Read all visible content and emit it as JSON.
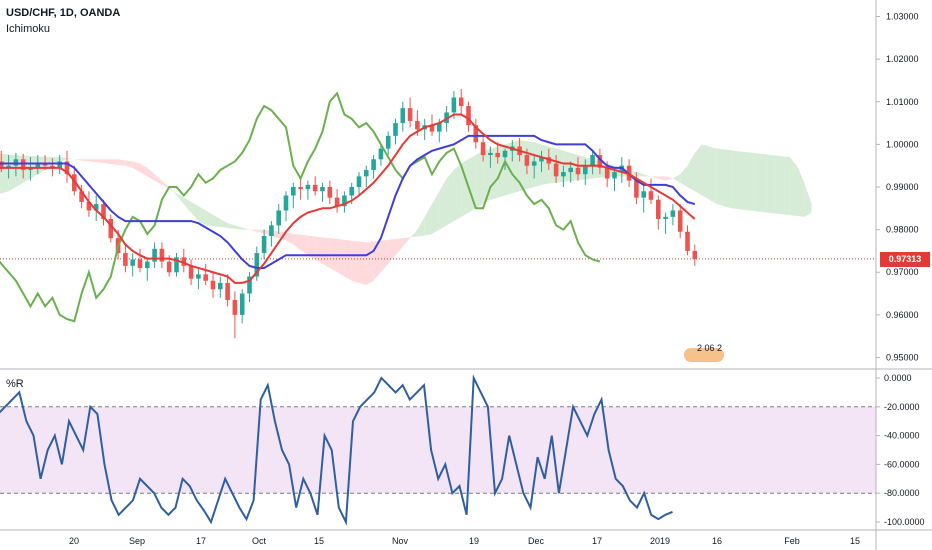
{
  "header": {
    "symbol": "USD/CHF, 1D, OANDA",
    "indicator": "Ichimoku",
    "oscillator": "%R",
    "badge_text": "2 06 2"
  },
  "colors": {
    "bull": "#26a69a",
    "bear": "#ef5350",
    "tenkan": "#e53935",
    "kijun": "#3f3fd8",
    "chikou": "#6ab04c",
    "cloud_bull": "#c8e6c9",
    "cloud_bear": "#ffcdd2",
    "williams_line": "#2f5fa0",
    "williams_band": "#f3e5f5",
    "last_price_tag": "#e53935"
  },
  "chart_data": [
    {
      "type": "candlestick",
      "title": "USD/CHF, 1D, OANDA",
      "indicator": "Ichimoku",
      "ylim": [
        0.948,
        1.032
      ],
      "y_ticks": [
        "1.03000",
        "1.02000",
        "1.01000",
        "1.00000",
        "0.99000",
        "0.98000",
        "0.97000",
        "0.96000",
        "0.95000"
      ],
      "last_price": "0.97313",
      "x_ticks": [
        "20",
        "Sep",
        "17",
        "Oct",
        "15",
        "Nov",
        "19",
        "Dec",
        "17",
        "2019",
        "16",
        "Feb",
        "15"
      ],
      "candles": [
        [
          0.9975,
          0.999,
          0.993,
          0.996
        ],
        [
          0.996,
          0.9985,
          0.9935,
          0.9945
        ],
        [
          0.9945,
          0.9975,
          0.992,
          0.995
        ],
        [
          0.995,
          0.998,
          0.9925,
          0.9965
        ],
        [
          0.9965,
          0.9978,
          0.992,
          0.994
        ],
        [
          0.994,
          0.997,
          0.9915,
          0.9945
        ],
        [
          0.9945,
          0.9975,
          0.993,
          0.9955
        ],
        [
          0.9955,
          0.9975,
          0.994,
          0.995
        ],
        [
          0.995,
          0.9968,
          0.9925,
          0.9945
        ],
        [
          0.9945,
          0.9975,
          0.993,
          0.996
        ],
        [
          0.996,
          0.9985,
          0.991,
          0.993
        ],
        [
          0.993,
          0.995,
          0.988,
          0.989
        ],
        [
          0.989,
          0.9905,
          0.985,
          0.9865
        ],
        [
          0.9865,
          0.989,
          0.983,
          0.9845
        ],
        [
          0.9845,
          0.988,
          0.982,
          0.986
        ],
        [
          0.986,
          0.987,
          0.981,
          0.9825
        ],
        [
          0.9825,
          0.9835,
          0.977,
          0.978
        ],
        [
          0.978,
          0.98,
          0.973,
          0.9745
        ],
        [
          0.9745,
          0.9765,
          0.97,
          0.9715
        ],
        [
          0.9715,
          0.9745,
          0.969,
          0.973
        ],
        [
          0.973,
          0.9755,
          0.97,
          0.971
        ],
        [
          0.971,
          0.9735,
          0.968,
          0.9725
        ],
        [
          0.9725,
          0.977,
          0.971,
          0.9755
        ],
        [
          0.9755,
          0.977,
          0.971,
          0.9725
        ],
        [
          0.9725,
          0.974,
          0.969,
          0.97
        ],
        [
          0.97,
          0.9745,
          0.969,
          0.9735
        ],
        [
          0.9735,
          0.9755,
          0.97,
          0.9715
        ],
        [
          0.9715,
          0.973,
          0.967,
          0.9685
        ],
        [
          0.9685,
          0.971,
          0.966,
          0.9695
        ],
        [
          0.9695,
          0.972,
          0.967,
          0.968
        ],
        [
          0.968,
          0.97,
          0.964,
          0.966
        ],
        [
          0.966,
          0.969,
          0.964,
          0.9675
        ],
        [
          0.9675,
          0.9695,
          0.962,
          0.9635
        ],
        [
          0.9635,
          0.9655,
          0.9545,
          0.96
        ],
        [
          0.96,
          0.966,
          0.958,
          0.965
        ],
        [
          0.965,
          0.97,
          0.963,
          0.969
        ],
        [
          0.969,
          0.976,
          0.968,
          0.9745
        ],
        [
          0.9745,
          0.98,
          0.973,
          0.9785
        ],
        [
          0.9785,
          0.982,
          0.976,
          0.981
        ],
        [
          0.981,
          0.986,
          0.979,
          0.9845
        ],
        [
          0.9845,
          0.989,
          0.982,
          0.988
        ],
        [
          0.988,
          0.991,
          0.985,
          0.99
        ],
        [
          0.99,
          0.992,
          0.987,
          0.9895
        ],
        [
          0.9895,
          0.9915,
          0.987,
          0.9905
        ],
        [
          0.9905,
          0.9925,
          0.988,
          0.989
        ],
        [
          0.989,
          0.991,
          0.9865,
          0.99
        ],
        [
          0.99,
          0.9915,
          0.986,
          0.9875
        ],
        [
          0.9875,
          0.9895,
          0.984,
          0.9855
        ],
        [
          0.9855,
          0.989,
          0.984,
          0.988
        ],
        [
          0.988,
          0.991,
          0.986,
          0.99
        ],
        [
          0.99,
          0.9935,
          0.988,
          0.9925
        ],
        [
          0.9925,
          0.995,
          0.99,
          0.994
        ],
        [
          0.994,
          0.9975,
          0.992,
          0.9965
        ],
        [
          0.9965,
          1.0,
          0.995,
          0.999
        ],
        [
          0.999,
          1.003,
          0.9975,
          1.002
        ],
        [
          1.002,
          1.006,
          1.0,
          1.005
        ],
        [
          1.005,
          1.01,
          1.003,
          1.0085
        ],
        [
          1.0085,
          1.011,
          1.004,
          1.0055
        ],
        [
          1.0055,
          1.008,
          1.002,
          1.0035
        ],
        [
          1.0035,
          1.006,
          1.001,
          1.0045
        ],
        [
          1.0045,
          1.007,
          1.002,
          1.003
        ],
        [
          1.003,
          1.006,
          1.0005,
          1.005
        ],
        [
          1.005,
          1.009,
          1.003,
          1.0075
        ],
        [
          1.0075,
          1.0125,
          1.006,
          1.011
        ],
        [
          1.011,
          1.013,
          1.007,
          1.009
        ],
        [
          1.009,
          1.01,
          1.003,
          1.0045
        ],
        [
          1.0045,
          1.006,
          0.999,
          1.0005
        ],
        [
          1.0005,
          1.002,
          0.996,
          0.9975
        ],
        [
          0.9975,
          0.9995,
          0.9945,
          0.998
        ],
        [
          0.998,
          1.0005,
          0.9955,
          0.997
        ],
        [
          0.997,
          0.999,
          0.994,
          0.9985
        ],
        [
          0.9985,
          1.001,
          0.996,
          0.9995
        ],
        [
          0.9995,
          1.0015,
          0.996,
          0.9975
        ],
        [
          0.9975,
          0.999,
          0.993,
          0.995
        ],
        [
          0.995,
          0.9975,
          0.992,
          0.996
        ],
        [
          0.996,
          0.9985,
          0.9935,
          0.997
        ],
        [
          0.997,
          0.999,
          0.994,
          0.9955
        ],
        [
          0.9955,
          0.9975,
          0.991,
          0.9925
        ],
        [
          0.9925,
          0.995,
          0.99,
          0.9935
        ],
        [
          0.9935,
          0.996,
          0.991,
          0.9945
        ],
        [
          0.9945,
          0.997,
          0.9915,
          0.993
        ],
        [
          0.993,
          0.9965,
          0.9905,
          0.995
        ],
        [
          0.995,
          0.9985,
          0.993,
          0.9975
        ],
        [
          0.9975,
          0.999,
          0.993,
          0.9945
        ],
        [
          0.9945,
          0.996,
          0.99,
          0.992
        ],
        [
          0.992,
          0.9945,
          0.989,
          0.9935
        ],
        [
          0.9935,
          0.997,
          0.991,
          0.995
        ],
        [
          0.995,
          0.9965,
          0.99,
          0.9915
        ],
        [
          0.9915,
          0.9935,
          0.986,
          0.9875
        ],
        [
          0.9875,
          0.9905,
          0.984,
          0.989
        ],
        [
          0.989,
          0.992,
          0.986,
          0.987
        ],
        [
          0.987,
          0.988,
          0.98,
          0.9825
        ],
        [
          0.9825,
          0.984,
          0.979,
          0.983
        ],
        [
          0.983,
          0.986,
          0.981,
          0.9845
        ],
        [
          0.9845,
          0.986,
          0.978,
          0.9795
        ],
        [
          0.9795,
          0.981,
          0.974,
          0.975
        ],
        [
          0.975,
          0.9765,
          0.9715,
          0.9731
        ]
      ],
      "tenkan": [
        0.9945,
        0.9945,
        0.9945,
        0.9945,
        0.9945,
        0.9945,
        0.9945,
        0.9945,
        0.9945,
        0.9945,
        0.9935,
        0.9915,
        0.989,
        0.9865,
        0.9845,
        0.983,
        0.981,
        0.979,
        0.9765,
        0.975,
        0.974,
        0.9732,
        0.9732,
        0.9732,
        0.9732,
        0.9728,
        0.9722,
        0.9715,
        0.971,
        0.9705,
        0.97,
        0.9695,
        0.969,
        0.9675,
        0.9675,
        0.968,
        0.97,
        0.972,
        0.9745,
        0.977,
        0.9795,
        0.9815,
        0.983,
        0.984,
        0.9845,
        0.985,
        0.985,
        0.9855,
        0.986,
        0.9868,
        0.988,
        0.9895,
        0.991,
        0.993,
        0.995,
        0.9975,
        1.0,
        1.002,
        1.003,
        1.004,
        1.0045,
        1.005,
        1.006,
        1.007,
        1.007,
        1.006,
        1.004,
        1.0025,
        1.001,
        1.0,
        0.9995,
        0.999,
        0.9985,
        0.998,
        0.9975,
        0.997,
        0.9965,
        0.996,
        0.9955,
        0.9955,
        0.995,
        0.995,
        0.995,
        0.995,
        0.9945,
        0.994,
        0.9935,
        0.993,
        0.992,
        0.991,
        0.99,
        0.989,
        0.988,
        0.987,
        0.9855,
        0.984,
        0.9825
      ],
      "kijun": [
        0.9955,
        0.9955,
        0.9955,
        0.9955,
        0.9955,
        0.9955,
        0.9955,
        0.9955,
        0.9955,
        0.9955,
        0.9955,
        0.9945,
        0.9925,
        0.9905,
        0.9885,
        0.9865,
        0.9845,
        0.983,
        0.982,
        0.982,
        0.982,
        0.982,
        0.982,
        0.982,
        0.982,
        0.982,
        0.982,
        0.982,
        0.9815,
        0.9805,
        0.9795,
        0.9785,
        0.977,
        0.975,
        0.973,
        0.9715,
        0.971,
        0.971,
        0.972,
        0.973,
        0.974,
        0.974,
        0.974,
        0.974,
        0.974,
        0.974,
        0.974,
        0.974,
        0.974,
        0.974,
        0.974,
        0.974,
        0.975,
        0.978,
        0.983,
        0.988,
        0.992,
        0.995,
        0.9965,
        0.9975,
        0.9985,
        0.999,
        0.9995,
        1.0,
        1.001,
        1.002,
        1.002,
        1.002,
        1.002,
        1.002,
        1.002,
        1.002,
        1.002,
        1.002,
        1.002,
        1.001,
        1.0005,
        1.0,
        1.0,
        1.0,
        1.0,
        1.0,
        0.9985,
        0.9965,
        0.995,
        0.9945,
        0.9945,
        0.993,
        0.9915,
        0.9905,
        0.9905,
        0.9905,
        0.9905,
        0.99,
        0.988,
        0.9865,
        0.986
      ],
      "chikou": [
        0.974,
        0.972,
        0.97,
        0.968,
        0.965,
        0.962,
        0.965,
        0.962,
        0.964,
        0.96,
        0.959,
        0.9585,
        0.965,
        0.97,
        0.964,
        0.966,
        0.969,
        0.976,
        0.98,
        0.983,
        0.982,
        0.979,
        0.981,
        0.987,
        0.99,
        0.99,
        0.988,
        0.99,
        0.993,
        0.991,
        0.992,
        0.994,
        0.995,
        0.996,
        0.998,
        1.001,
        1.006,
        1.009,
        1.008,
        1.006,
        1.004,
        0.995,
        0.992,
        0.996,
        0.999,
        1.003,
        1.01,
        1.012,
        1.007,
        1.006,
        1.004,
        1.005,
        1.003,
        1.0,
        0.997,
        0.994,
        0.992,
        0.995,
        0.996,
        0.997,
        0.993,
        0.996,
        0.998,
        0.999,
        0.995,
        0.99,
        0.985,
        0.985,
        0.99,
        0.992,
        0.996,
        0.993,
        0.991,
        0.988,
        0.986,
        0.987,
        0.985,
        0.981,
        0.98,
        0.982,
        0.977,
        0.974,
        0.973,
        0.9725
      ],
      "cloud_span_a": [
        0.998,
        0.9978,
        0.9976,
        0.9975,
        0.9974,
        0.9973,
        0.9972,
        0.9971,
        0.997,
        0.997,
        0.9968,
        0.9965,
        0.9962,
        0.996,
        0.9958,
        0.9956,
        0.9954,
        0.9952,
        0.995,
        0.9945,
        0.9935,
        0.9925,
        0.9915,
        0.9905,
        0.9895,
        0.9885,
        0.9875,
        0.9865,
        0.9855,
        0.9845,
        0.9835,
        0.9825,
        0.9815,
        0.981,
        0.9805,
        0.98,
        0.9795,
        0.979,
        0.9785,
        0.978,
        0.9775,
        0.9765,
        0.9752,
        0.974,
        0.973,
        0.972,
        0.971,
        0.97,
        0.969,
        0.968,
        0.9675,
        0.967,
        0.968,
        0.97,
        0.972,
        0.974,
        0.976,
        0.978,
        0.98,
        0.983,
        0.986,
        0.989,
        0.992,
        0.994,
        0.9955,
        0.9965,
        0.9975,
        0.9985,
        0.999,
        0.9995,
        1.0,
        1.0005,
        1.001,
        1.0008,
        1.0005,
        1.0,
        0.9995,
        0.999,
        0.9985,
        0.998,
        0.9975,
        0.997,
        0.9965,
        0.996,
        0.9955,
        0.995,
        0.9945,
        0.994,
        0.9935,
        0.993,
        0.9925,
        0.992,
        0.9915,
        0.992,
        0.993,
        0.995,
        0.998,
        1.0,
        0.9995,
        0.999,
        0.9988,
        0.9986,
        0.9984,
        0.9982,
        0.998,
        0.9978,
        0.9976,
        0.9974,
        0.9972,
        0.997,
        0.995,
        0.991,
        0.986
      ],
      "cloud_span_b": [
        0.988,
        0.9885,
        0.989,
        0.99,
        0.991,
        0.992,
        0.993,
        0.994,
        0.995,
        0.996,
        0.9965,
        0.9965,
        0.9965,
        0.9965,
        0.9965,
        0.9965,
        0.9965,
        0.9965,
        0.9962,
        0.996,
        0.9955,
        0.9945,
        0.993,
        0.9915,
        0.99,
        0.988,
        0.986,
        0.984,
        0.982,
        0.981,
        0.9808,
        0.9806,
        0.9804,
        0.9802,
        0.98,
        0.98,
        0.98,
        0.98,
        0.9798,
        0.9796,
        0.9794,
        0.979,
        0.9788,
        0.9786,
        0.9784,
        0.9782,
        0.978,
        0.9778,
        0.9776,
        0.9774,
        0.9772,
        0.977,
        0.9772,
        0.9774,
        0.9776,
        0.9778,
        0.978,
        0.9782,
        0.9784,
        0.9786,
        0.979,
        0.98,
        0.981,
        0.982,
        0.983,
        0.984,
        0.985,
        0.986,
        0.987,
        0.9875,
        0.988,
        0.9885,
        0.989,
        0.9895,
        0.99,
        0.9905,
        0.9908,
        0.991,
        0.9912,
        0.9914,
        0.9916,
        0.9918,
        0.992,
        0.9922,
        0.9924,
        0.9925,
        0.9925,
        0.9925,
        0.9925,
        0.9925,
        0.9925,
        0.9925,
        0.9925,
        0.992,
        0.991,
        0.99,
        0.989,
        0.988,
        0.987,
        0.986,
        0.9855,
        0.985,
        0.9848,
        0.9846,
        0.9844,
        0.9842,
        0.984,
        0.9838,
        0.9836,
        0.9834,
        0.9832,
        0.983,
        0.984
      ]
    },
    {
      "type": "line",
      "title": "%R",
      "ylim": [
        -100,
        0
      ],
      "y_ticks": [
        "0.0000",
        "-20.0000",
        "-40.0000",
        "-60.0000",
        "-80.0000",
        "-100.0000"
      ],
      "band": [
        -80,
        -20
      ],
      "values": [
        -25,
        -20,
        -15,
        -10,
        -30,
        -40,
        -70,
        -50,
        -40,
        -60,
        -30,
        -40,
        -50,
        -20,
        -25,
        -60,
        -85,
        -95,
        -90,
        -85,
        -70,
        -75,
        -80,
        -90,
        -95,
        -90,
        -70,
        -75,
        -85,
        -92,
        -100,
        -85,
        -70,
        -80,
        -90,
        -98,
        -85,
        -15,
        -5,
        -30,
        -50,
        -60,
        -90,
        -70,
        -80,
        -95,
        -40,
        -50,
        -90,
        -100,
        -30,
        -20,
        -15,
        -10,
        0,
        -5,
        -10,
        -5,
        -15,
        -10,
        -5,
        -50,
        -70,
        -60,
        -80,
        -75,
        -95,
        0,
        -10,
        -20,
        -80,
        -70,
        -40,
        -60,
        -80,
        -90,
        -55,
        -70,
        -40,
        -80,
        -50,
        -20,
        -30,
        -40,
        -25,
        -15,
        -50,
        -70,
        -75,
        -85,
        -90,
        -80,
        -95,
        -98,
        -95,
        -93
      ]
    }
  ]
}
